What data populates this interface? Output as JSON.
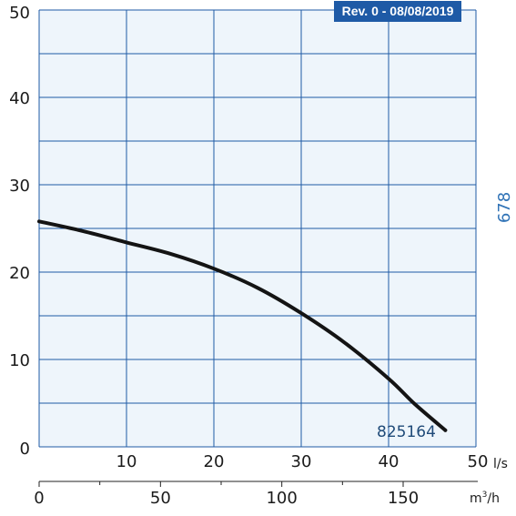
{
  "revision_badge": "Rev. 0 - 08/08/2019",
  "side_label": "678",
  "colors": {
    "plot_background": "#eef5fb",
    "grid": "#1f5aa6",
    "curve": "#141414",
    "badge": "#1e5aa6",
    "side_label": "#2f72b6",
    "curve_label": "#1f4a78"
  },
  "chart_data": {
    "type": "line",
    "title": "",
    "ylabel": "",
    "xlabel": "l/s",
    "xlabel_secondary": "m³/h",
    "xlim": [
      0,
      50
    ],
    "ylim": [
      0,
      50
    ],
    "grid": true,
    "x_ticks": [
      "10",
      "20",
      "30",
      "40",
      "50"
    ],
    "y_ticks": [
      "0",
      "10",
      "20",
      "30",
      "40",
      "50"
    ],
    "x2_ticks": [
      "0",
      "50",
      "100",
      "150"
    ],
    "x2_tick_values": [
      0,
      50,
      100,
      150
    ],
    "series": [
      {
        "name": "825164",
        "x": [
          0,
          5,
          10,
          15,
          20,
          25,
          30,
          35,
          40,
          43,
          46.5
        ],
        "y": [
          25.8,
          24.7,
          23.4,
          22.1,
          20.4,
          18.2,
          15.3,
          11.9,
          7.8,
          4.9,
          1.9
        ]
      }
    ]
  }
}
